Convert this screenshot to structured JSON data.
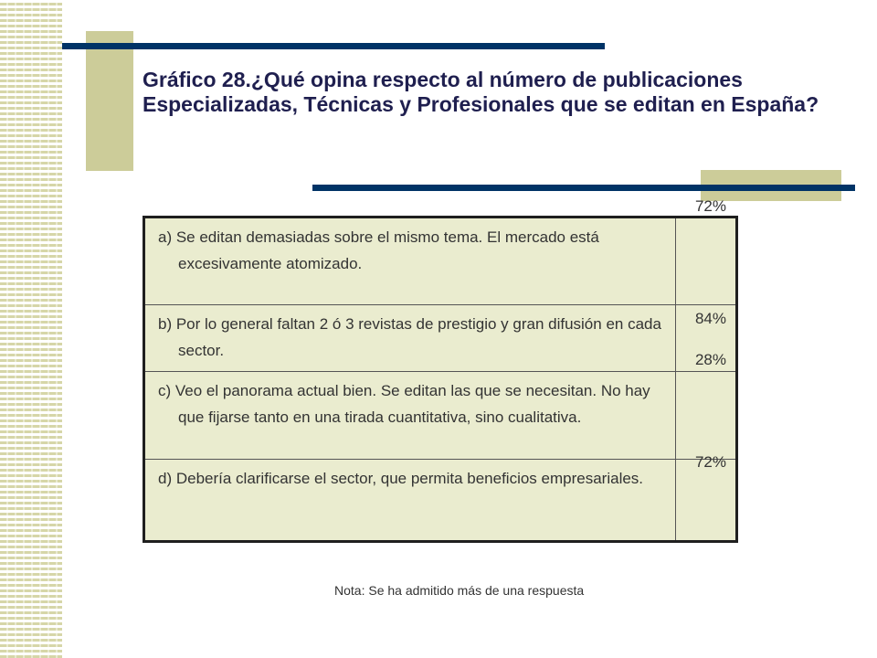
{
  "slide": {
    "title": "Gráfico 28.¿Qué opina respecto al número de publicaciones Especializadas, Técnicas y Profesionales que se editan en España?",
    "rows": [
      {
        "text": "a) Se editan demasiadas sobre el mismo tema. El mercado está excesivamente atomizado.",
        "value": "72%"
      },
      {
        "text": "b) Por lo general faltan 2 ó 3 revistas de prestigio y gran difusión en cada sector.",
        "value": "84%"
      },
      {
        "text": "c) Veo el panorama actual bien. Se editan las que se necesitan. No hay que fijarse tanto en una tirada cuantitativa, sino cualitativa.",
        "value": "28%"
      },
      {
        "text": "d) Debería clarificarse el sector, que permita beneficios empresariales.",
        "value": "72%"
      }
    ],
    "note": "Nota: Se ha admitido más de una respuesta"
  },
  "colors": {
    "accent_bar": "#003366",
    "olive_block": "#cccc99",
    "table_fill": "#eaeccf",
    "title_text": "#1f1f4f"
  }
}
